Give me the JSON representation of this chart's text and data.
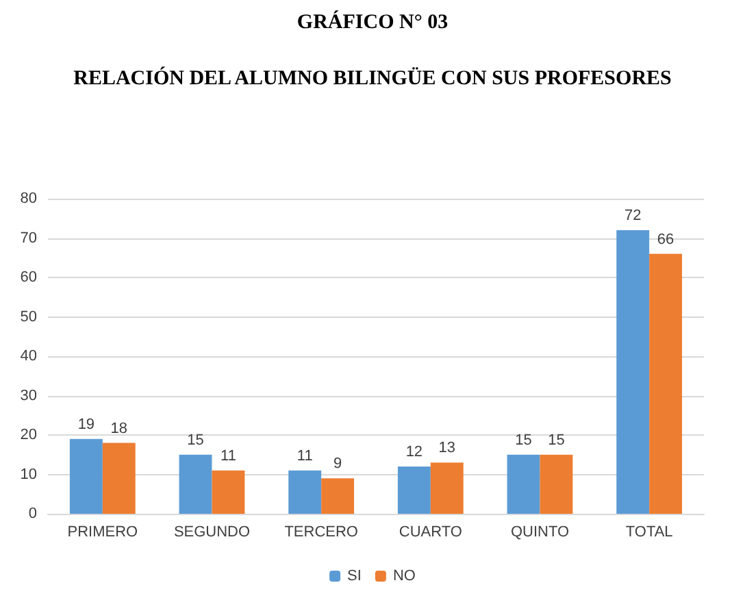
{
  "chart_data": {
    "type": "bar",
    "title": "GRÁFICO N° 03",
    "subtitle": "RELACIÓN DEL ALUMNO BILINGÜE CON SUS PROFESORES",
    "categories": [
      "PRIMERO",
      "SEGUNDO",
      "TERCERO",
      "CUARTO",
      "QUINTO",
      "TOTAL"
    ],
    "series": [
      {
        "name": "SI",
        "color": "#5b9bd5",
        "values": [
          19,
          15,
          11,
          12,
          15,
          72
        ]
      },
      {
        "name": "NO",
        "color": "#ed7d31",
        "values": [
          18,
          11,
          9,
          13,
          15,
          66
        ]
      }
    ],
    "ylim": [
      0,
      80
    ],
    "yticks": [
      0,
      10,
      20,
      30,
      40,
      50,
      60,
      70,
      80
    ],
    "grid": "y",
    "legend": "bottom",
    "data_labels": true
  }
}
